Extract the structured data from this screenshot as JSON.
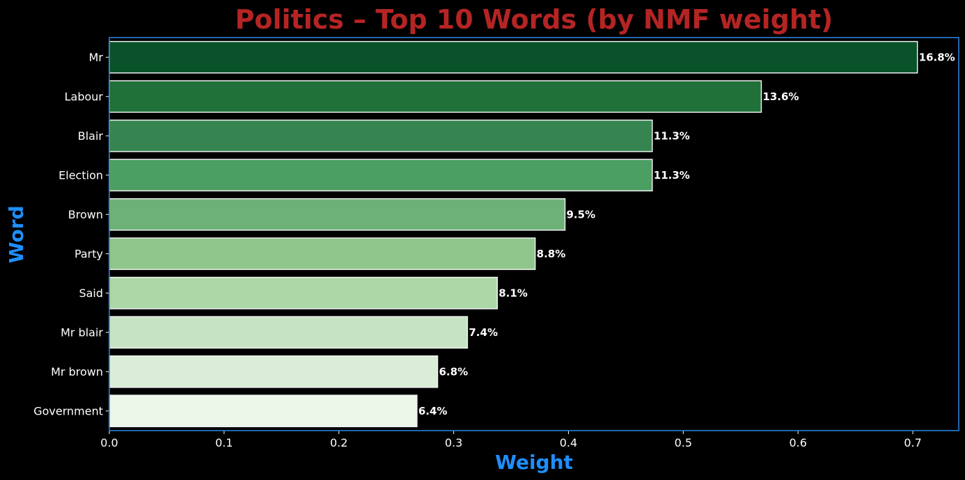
{
  "chart_data": {
    "type": "bar",
    "orientation": "horizontal",
    "title": "Politics – Top 10 Words (by NMF weight)",
    "xlabel": "Weight",
    "ylabel": "Word",
    "categories": [
      "Mr",
      "Labour",
      "Blair",
      "Election",
      "Brown",
      "Party",
      "Said",
      "Mr blair",
      "Mr brown",
      "Government"
    ],
    "values": [
      0.704,
      0.568,
      0.473,
      0.473,
      0.397,
      0.371,
      0.338,
      0.312,
      0.286,
      0.268
    ],
    "data_labels": [
      "16.8%",
      "13.6%",
      "11.3%",
      "11.3%",
      "9.5%",
      "8.8%",
      "8.1%",
      "7.4%",
      "6.8%",
      "6.4%"
    ],
    "xlim": [
      0,
      0.74
    ],
    "xticks": [
      0.0,
      0.1,
      0.2,
      0.3,
      0.4,
      0.5,
      0.6,
      0.7
    ],
    "xtick_labels": [
      "0.0",
      "0.1",
      "0.2",
      "0.3",
      "0.4",
      "0.5",
      "0.6",
      "0.7"
    ],
    "grid": false,
    "legend": "none",
    "bar_colors": [
      "#0a5229",
      "#1f7039",
      "#368550",
      "#4c9f63",
      "#6db178",
      "#8fc68c",
      "#acd7a6",
      "#c6e3c3",
      "#daeed7",
      "#ecf6e9"
    ],
    "bar_edge_color": "#f0f0f0",
    "title_color": "#b52424",
    "axis_label_color": "#1e8fff",
    "frame_color": "#2b7fd9",
    "background": "#000000"
  }
}
